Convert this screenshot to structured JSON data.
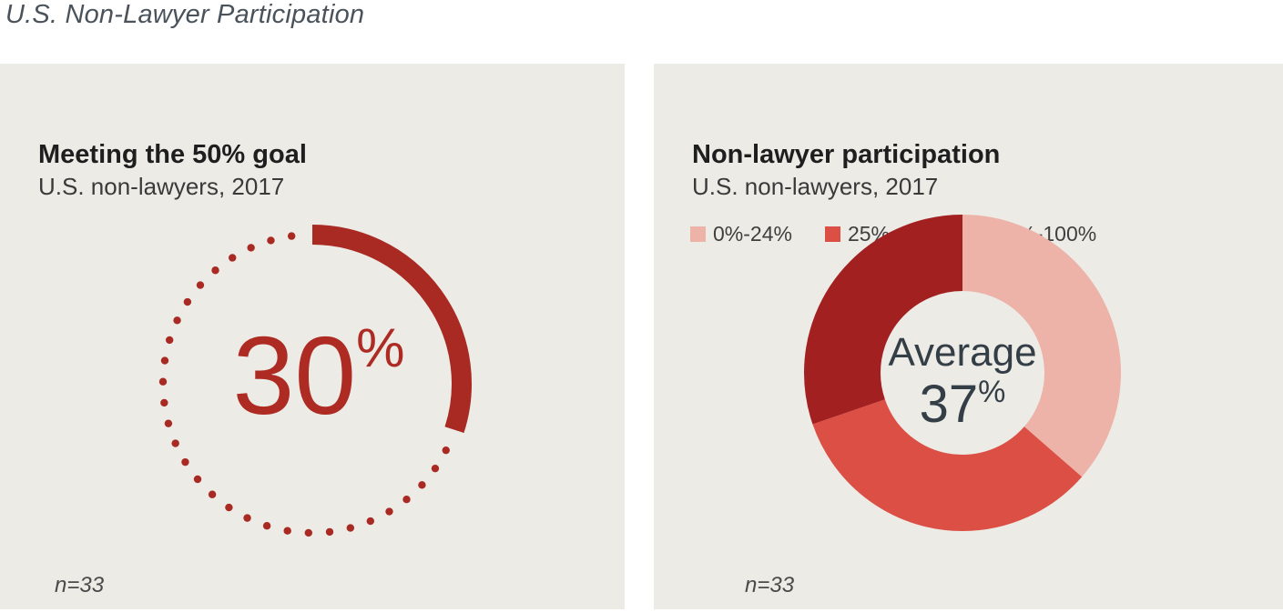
{
  "page": {
    "title": "U.S. Non-Lawyer Participation",
    "background": "#FFFFFF",
    "panel_background": "#ECEBE6"
  },
  "gauge_panel": {
    "title": "Meeting the 50% goal",
    "subtitle": "U.S. non-lawyers, 2017",
    "sample_note": "n=33"
  },
  "donut_panel": {
    "title": "Non-lawyer participation",
    "subtitle": "U.S. non-lawyers, 2017",
    "sample_note": "n=33"
  },
  "chart_data": [
    {
      "type": "gauge",
      "title": "Meeting the 50% goal",
      "subtitle": "U.S. non-lawyers, 2017",
      "value_pct": 30,
      "unit": "%",
      "max_pct": 100,
      "sample_note": "n=33",
      "color": "#A92A23",
      "value_color": "#AE2B24",
      "style": "solid arc from 12 o'clock clockwise for value; dotted circle for remainder"
    },
    {
      "type": "pie",
      "donut": true,
      "title": "Non-lawyer participation",
      "subtitle": "U.S. non-lawyers, 2017",
      "center_label": "Average",
      "center_value": "37",
      "center_unit": "%",
      "sample_note": "n=33",
      "legend_position": "top-left",
      "start_angle": "12 o'clock, clockwise",
      "slices": [
        {
          "label": "0%-24%",
          "value_pct": 36.4,
          "color": "#EDB2A8"
        },
        {
          "label": "25%-49%",
          "value_pct": 33.3,
          "color": "#DC4F44"
        },
        {
          "label": "50%-100%",
          "value_pct": 30.3,
          "color": "#A32021"
        }
      ]
    }
  ]
}
